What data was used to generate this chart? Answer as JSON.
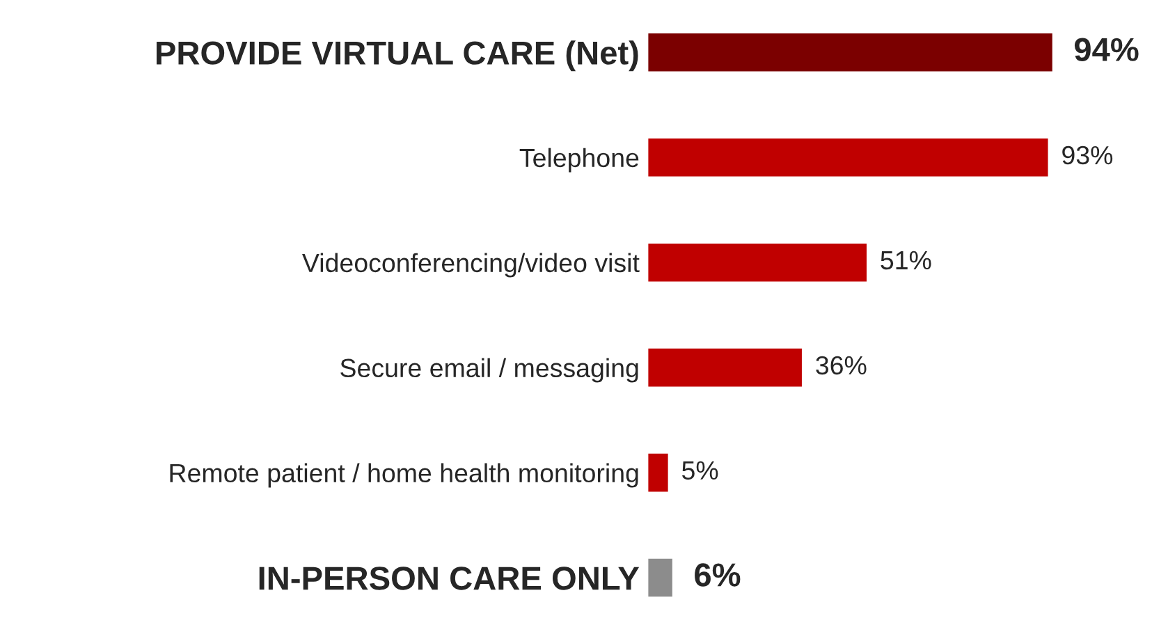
{
  "chart_data": {
    "type": "bar",
    "orientation": "horizontal",
    "categories": [
      "PROVIDE VIRTUAL CARE (Net)",
      "Telephone",
      "Videoconferencing/video visit",
      "Secure email / messaging",
      "Remote patient / home health monitoring",
      "IN-PERSON CARE ONLY"
    ],
    "values": [
      94,
      93,
      51,
      36,
      5,
      6
    ],
    "colors": [
      "#7b0000",
      "#c00000",
      "#c00000",
      "#c00000",
      "#c00000",
      "#8c8c8c"
    ],
    "value_labels": [
      "94%",
      "93%",
      "51%",
      "36%",
      "5%",
      "6%"
    ]
  }
}
